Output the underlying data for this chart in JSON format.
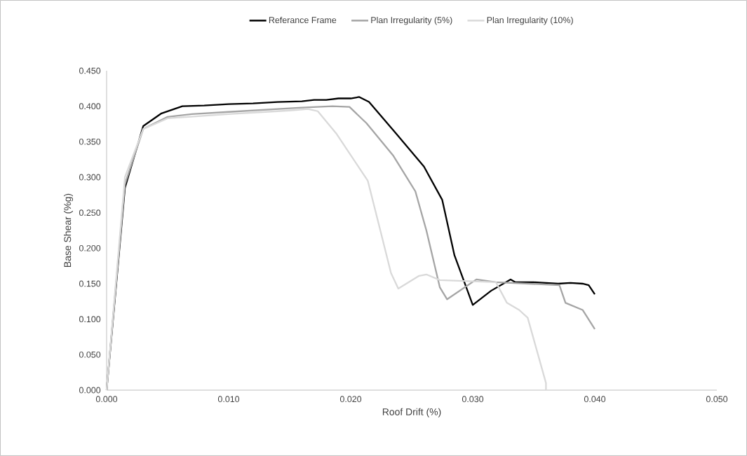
{
  "chart_data": {
    "type": "line",
    "xlabel": "Roof Drift (%)",
    "ylabel": "Base Shear (%g)",
    "legend": "top",
    "xlim": [
      0,
      0.05
    ],
    "ylim": [
      0,
      0.45
    ],
    "xticks": [
      {
        "value": 0,
        "label": "0.000"
      },
      {
        "value": 0.01,
        "label": "0.010"
      },
      {
        "value": 0.02,
        "label": "0.020"
      },
      {
        "value": 0.03,
        "label": "0.030"
      },
      {
        "value": 0.04,
        "label": "0.040"
      },
      {
        "value": 0.05,
        "label": "0.050"
      }
    ],
    "yticks": [
      {
        "value": 0,
        "label": "0.000"
      },
      {
        "value": 0.05,
        "label": "0.050"
      },
      {
        "value": 0.1,
        "label": "0.100"
      },
      {
        "value": 0.15,
        "label": "0.150"
      },
      {
        "value": 0.2,
        "label": "0.200"
      },
      {
        "value": 0.25,
        "label": "0.250"
      },
      {
        "value": 0.3,
        "label": "0.300"
      },
      {
        "value": 0.35,
        "label": "0.350"
      },
      {
        "value": 0.4,
        "label": "0.400"
      },
      {
        "value": 0.45,
        "label": "0.450"
      }
    ],
    "series": [
      {
        "name": "Referance Frame",
        "color": "#000000",
        "x": [
          0,
          0.0015,
          0.003,
          0.0045,
          0.0062,
          0.008,
          0.01,
          0.012,
          0.014,
          0.016,
          0.017,
          0.018,
          0.019,
          0.02,
          0.0207,
          0.0215,
          0.0237,
          0.026,
          0.0275,
          0.0285,
          0.03,
          0.0315,
          0.0331,
          0.0335,
          0.035,
          0.036,
          0.037,
          0.038,
          0.039,
          0.0395,
          0.04
        ],
        "values": [
          0,
          0.285,
          0.372,
          0.39,
          0.4,
          0.401,
          0.403,
          0.404,
          0.406,
          0.407,
          0.409,
          0.409,
          0.411,
          0.411,
          0.413,
          0.406,
          0.362,
          0.315,
          0.268,
          0.19,
          0.12,
          0.14,
          0.156,
          0.152,
          0.152,
          0.151,
          0.15,
          0.151,
          0.15,
          0.148,
          0.135
        ]
      },
      {
        "name": "Plan Irregularity (5%)",
        "color": "#a5a5a5",
        "x": [
          0,
          0.0015,
          0.003,
          0.005,
          0.007,
          0.01,
          0.013,
          0.016,
          0.0185,
          0.0199,
          0.0213,
          0.0235,
          0.0253,
          0.0262,
          0.0273,
          0.0279,
          0.0303,
          0.0319,
          0.0371,
          0.0376,
          0.039,
          0.04
        ],
        "values": [
          0,
          0.29,
          0.368,
          0.385,
          0.389,
          0.392,
          0.395,
          0.398,
          0.4,
          0.399,
          0.376,
          0.33,
          0.28,
          0.225,
          0.145,
          0.128,
          0.156,
          0.152,
          0.148,
          0.123,
          0.113,
          0.086
        ]
      },
      {
        "name": "Plan Irregularity (10%)",
        "color": "#d9d9d9",
        "x": [
          0,
          0.0015,
          0.003,
          0.005,
          0.01,
          0.015,
          0.0165,
          0.0173,
          0.0188,
          0.0214,
          0.0225,
          0.0233,
          0.0239,
          0.0256,
          0.0262,
          0.0273,
          0.0319,
          0.0328,
          0.0338,
          0.0345,
          0.036,
          0.036
        ],
        "values": [
          0,
          0.3,
          0.368,
          0.383,
          0.389,
          0.394,
          0.396,
          0.393,
          0.362,
          0.295,
          0.22,
          0.165,
          0.143,
          0.161,
          0.163,
          0.155,
          0.152,
          0.123,
          0.113,
          0.102,
          0.01,
          0
        ]
      }
    ]
  }
}
